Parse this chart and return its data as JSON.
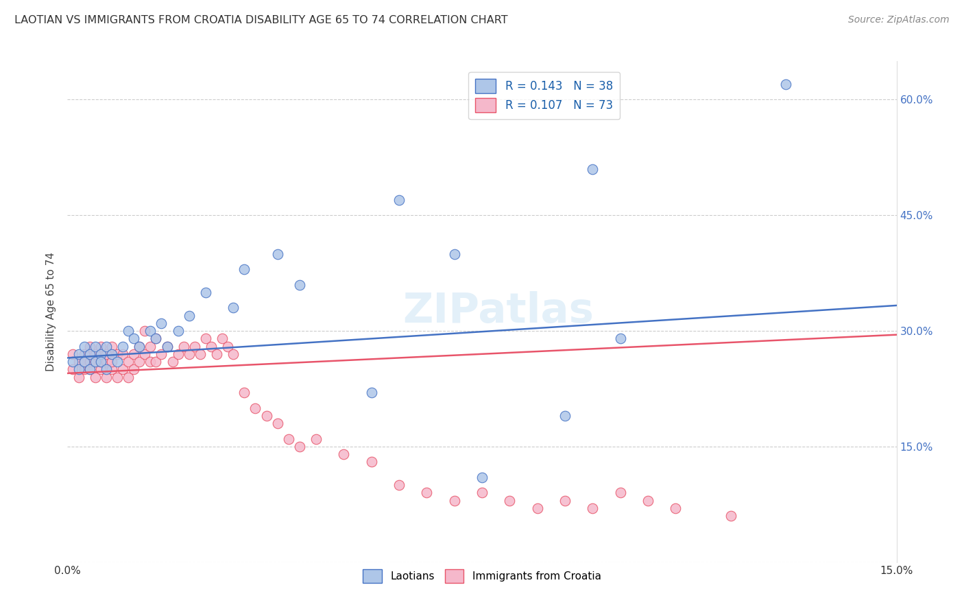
{
  "title": "LAOTIAN VS IMMIGRANTS FROM CROATIA DISABILITY AGE 65 TO 74 CORRELATION CHART",
  "source": "Source: ZipAtlas.com",
  "ylabel": "Disability Age 65 to 74",
  "xlim": [
    0.0,
    0.15
  ],
  "ylim": [
    0.0,
    0.65
  ],
  "legend_r1": "R = 0.143",
  "legend_n1": "N = 38",
  "legend_r2": "R = 0.107",
  "legend_n2": "N = 73",
  "legend_label1": "Laotians",
  "legend_label2": "Immigrants from Croatia",
  "color_blue": "#aec6e8",
  "color_pink": "#f5b8cb",
  "line_blue": "#4472c4",
  "line_pink": "#e8546a",
  "watermark": "ZIPatlas",
  "blue_x": [
    0.001,
    0.002,
    0.002,
    0.003,
    0.003,
    0.004,
    0.004,
    0.005,
    0.005,
    0.006,
    0.006,
    0.007,
    0.007,
    0.008,
    0.009,
    0.01,
    0.011,
    0.012,
    0.013,
    0.015,
    0.016,
    0.017,
    0.018,
    0.02,
    0.022,
    0.025,
    0.03,
    0.032,
    0.038,
    0.042,
    0.055,
    0.06,
    0.07,
    0.075,
    0.09,
    0.095,
    0.1,
    0.13
  ],
  "blue_y": [
    0.26,
    0.27,
    0.25,
    0.26,
    0.28,
    0.27,
    0.25,
    0.26,
    0.28,
    0.27,
    0.26,
    0.28,
    0.25,
    0.27,
    0.26,
    0.28,
    0.3,
    0.29,
    0.28,
    0.3,
    0.29,
    0.31,
    0.28,
    0.3,
    0.32,
    0.35,
    0.33,
    0.38,
    0.4,
    0.36,
    0.22,
    0.47,
    0.4,
    0.11,
    0.19,
    0.51,
    0.29,
    0.62
  ],
  "pink_x": [
    0.001,
    0.001,
    0.002,
    0.002,
    0.003,
    0.003,
    0.003,
    0.004,
    0.004,
    0.004,
    0.005,
    0.005,
    0.005,
    0.006,
    0.006,
    0.006,
    0.007,
    0.007,
    0.007,
    0.008,
    0.008,
    0.008,
    0.009,
    0.009,
    0.01,
    0.01,
    0.011,
    0.011,
    0.012,
    0.012,
    0.013,
    0.013,
    0.014,
    0.014,
    0.015,
    0.015,
    0.016,
    0.016,
    0.017,
    0.018,
    0.019,
    0.02,
    0.021,
    0.022,
    0.023,
    0.024,
    0.025,
    0.026,
    0.027,
    0.028,
    0.029,
    0.03,
    0.032,
    0.034,
    0.036,
    0.038,
    0.04,
    0.042,
    0.045,
    0.05,
    0.055,
    0.06,
    0.065,
    0.07,
    0.075,
    0.08,
    0.085,
    0.09,
    0.095,
    0.1,
    0.105,
    0.11,
    0.12
  ],
  "pink_y": [
    0.25,
    0.27,
    0.24,
    0.26,
    0.25,
    0.27,
    0.26,
    0.25,
    0.26,
    0.28,
    0.24,
    0.26,
    0.27,
    0.25,
    0.26,
    0.28,
    0.24,
    0.26,
    0.27,
    0.25,
    0.26,
    0.28,
    0.24,
    0.27,
    0.25,
    0.27,
    0.24,
    0.26,
    0.25,
    0.27,
    0.26,
    0.28,
    0.3,
    0.27,
    0.26,
    0.28,
    0.29,
    0.26,
    0.27,
    0.28,
    0.26,
    0.27,
    0.28,
    0.27,
    0.28,
    0.27,
    0.29,
    0.28,
    0.27,
    0.29,
    0.28,
    0.27,
    0.22,
    0.2,
    0.19,
    0.18,
    0.16,
    0.15,
    0.16,
    0.14,
    0.13,
    0.1,
    0.09,
    0.08,
    0.09,
    0.08,
    0.07,
    0.08,
    0.07,
    0.09,
    0.08,
    0.07,
    0.06
  ],
  "blue_regline": [
    0.265,
    0.333
  ],
  "pink_regline": [
    0.245,
    0.295
  ]
}
